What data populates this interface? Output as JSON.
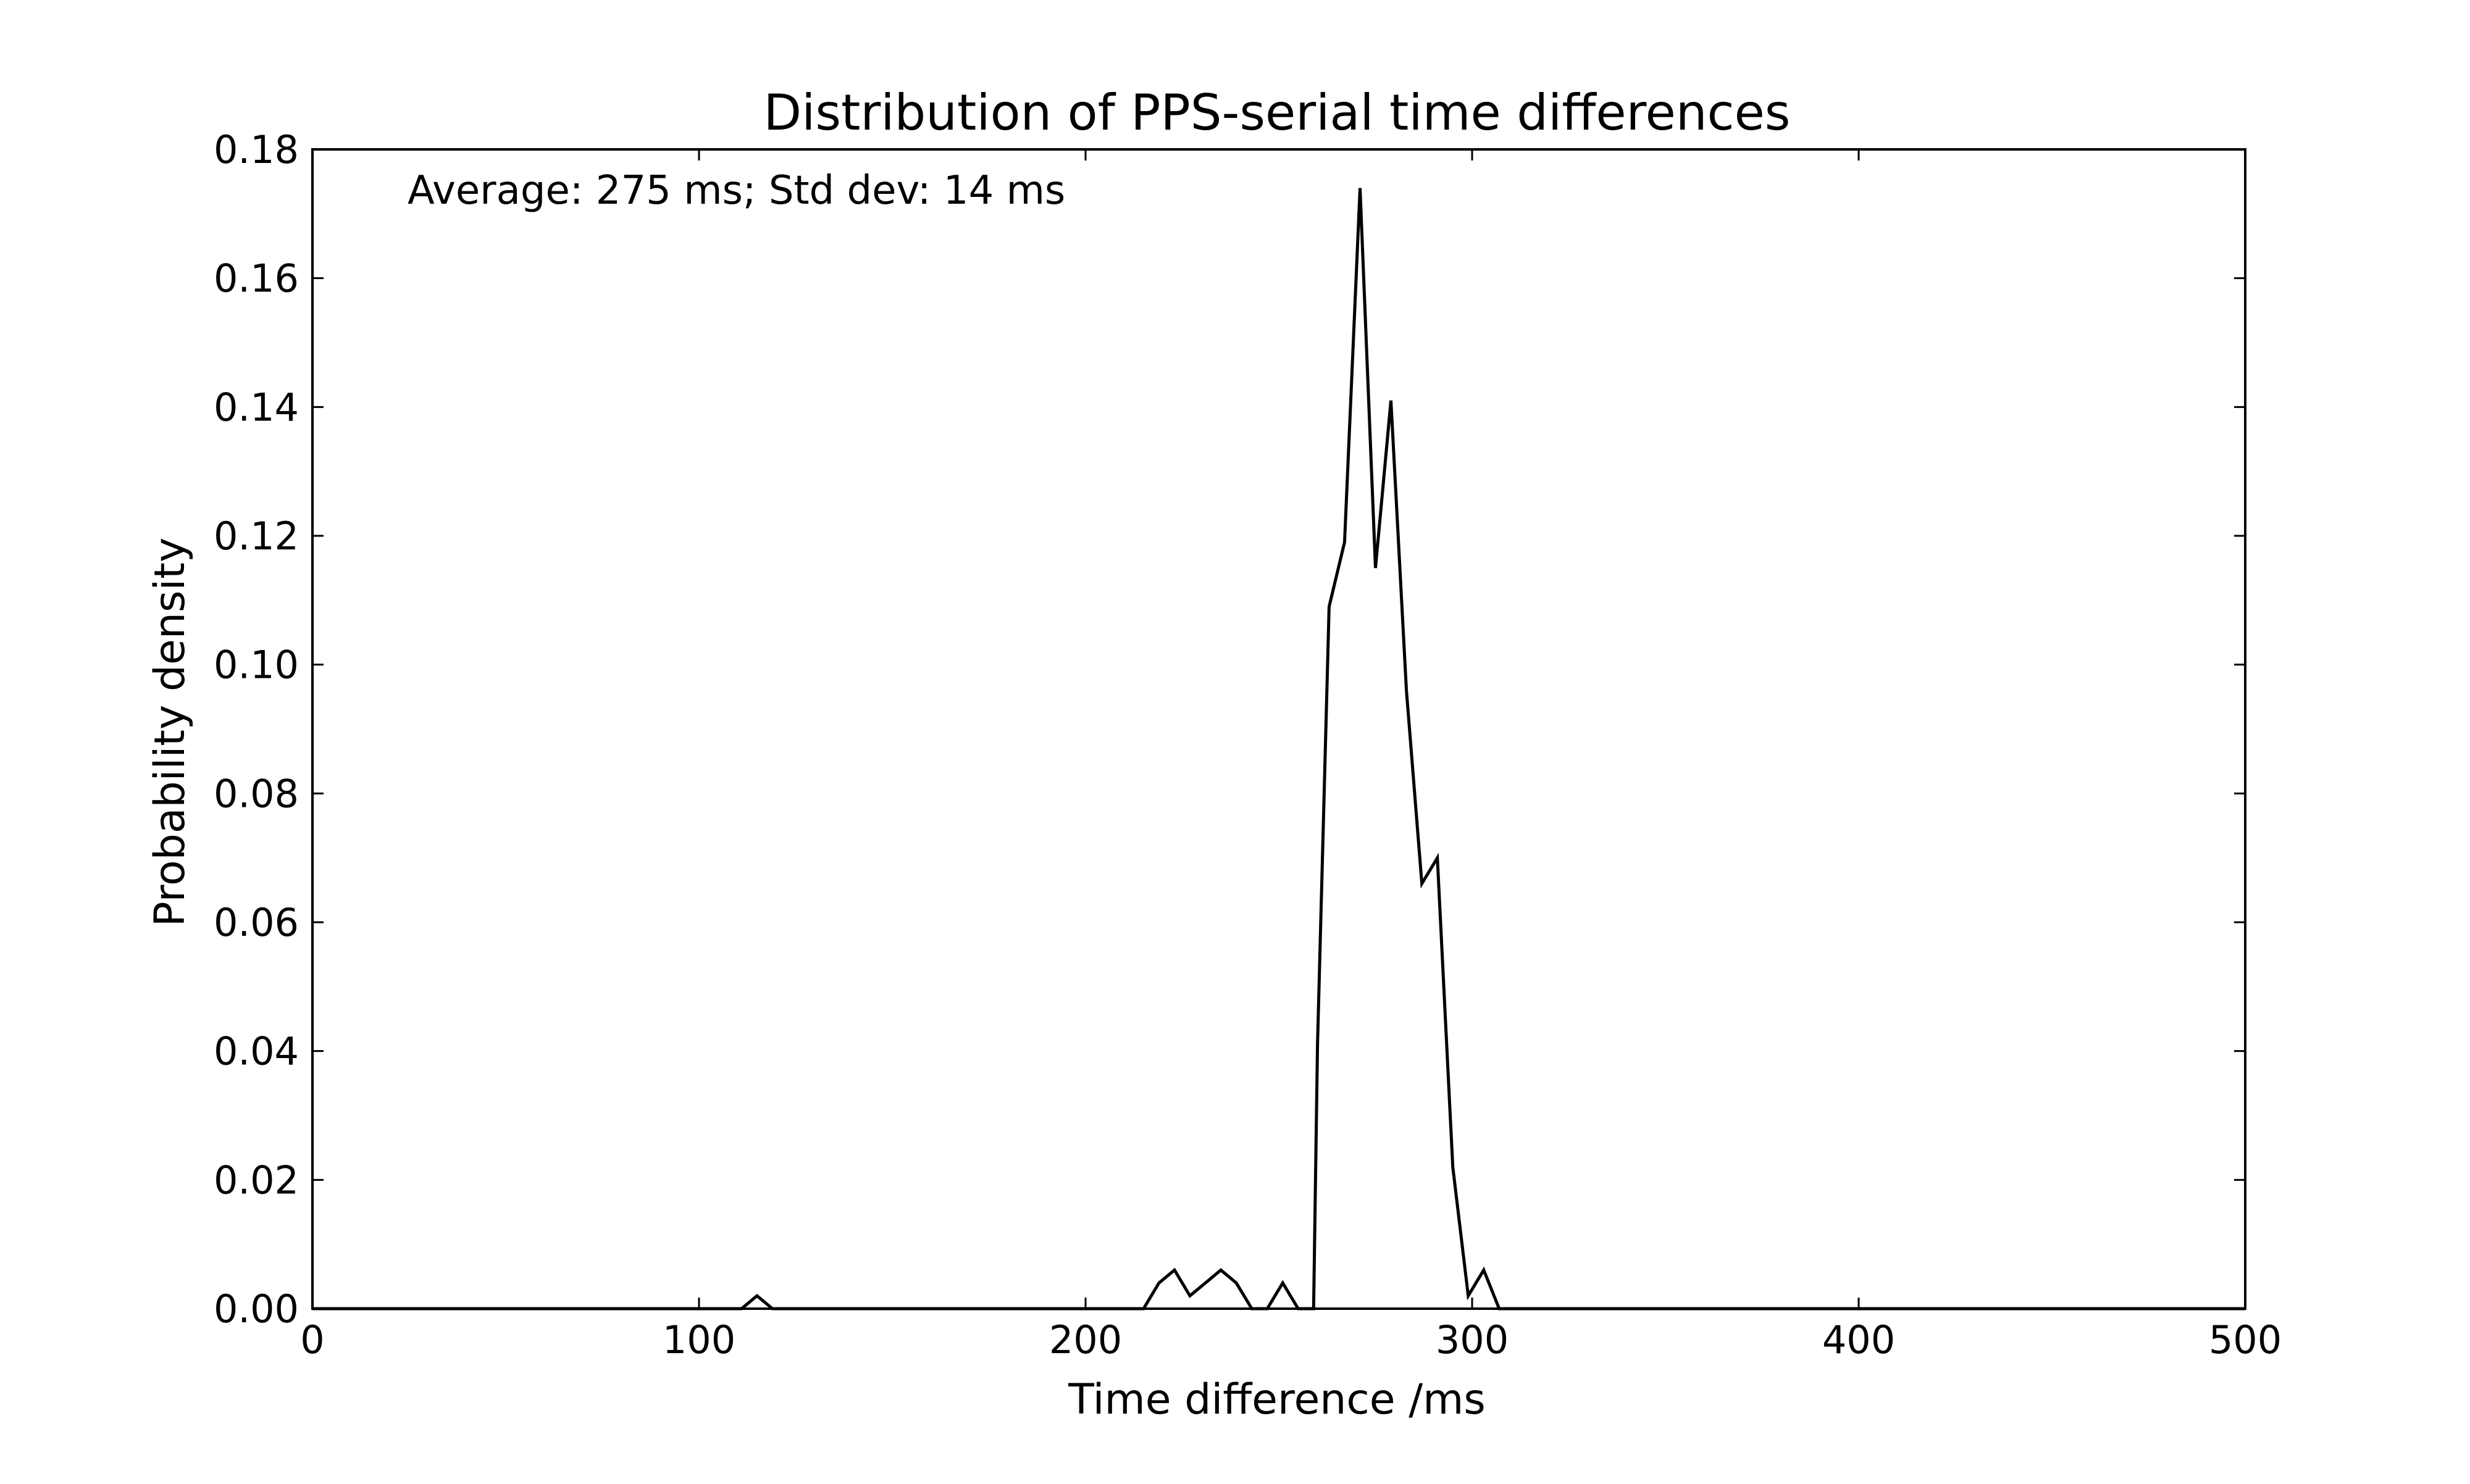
{
  "chart_data": {
    "type": "line",
    "title": "Distribution of PPS-serial time differences",
    "xlabel": "Time difference /ms",
    "ylabel": "Probability density",
    "xlim": [
      0,
      500
    ],
    "ylim": [
      0,
      0.18
    ],
    "x_ticks": [
      0,
      100,
      200,
      300,
      400,
      500
    ],
    "x_tick_labels": [
      "0",
      "100",
      "200",
      "300",
      "400",
      "500"
    ],
    "y_ticks": [
      0,
      0.02,
      0.04,
      0.06,
      0.08,
      0.1,
      0.12,
      0.14,
      0.16,
      0.18
    ],
    "y_tick_labels": [
      "0.00",
      "0.02",
      "0.04",
      "0.06",
      "0.08",
      "0.10",
      "0.12",
      "0.14",
      "0.16",
      "0.18"
    ],
    "annotation": "Average: 275 ms;  Std dev: 14 ms",
    "grid": false,
    "line_color": "#000000",
    "series": [
      {
        "x": [
          0,
          111,
          115,
          119,
          215,
          219,
          223,
          227,
          231,
          235,
          239,
          243,
          247,
          251,
          255,
          259,
          260,
          263,
          267,
          271,
          275,
          279,
          283,
          287,
          291,
          295,
          299,
          303,
          307,
          500
        ],
        "y": [
          0,
          0,
          0.002,
          0,
          0,
          0.004,
          0.006,
          0.002,
          0.004,
          0.006,
          0.004,
          0,
          0,
          0.004,
          0,
          0,
          0.041,
          0.109,
          0.119,
          0.174,
          0.115,
          0.141,
          0.096,
          0.066,
          0.07,
          0.022,
          0.002,
          0.006,
          0,
          0
        ]
      }
    ]
  }
}
